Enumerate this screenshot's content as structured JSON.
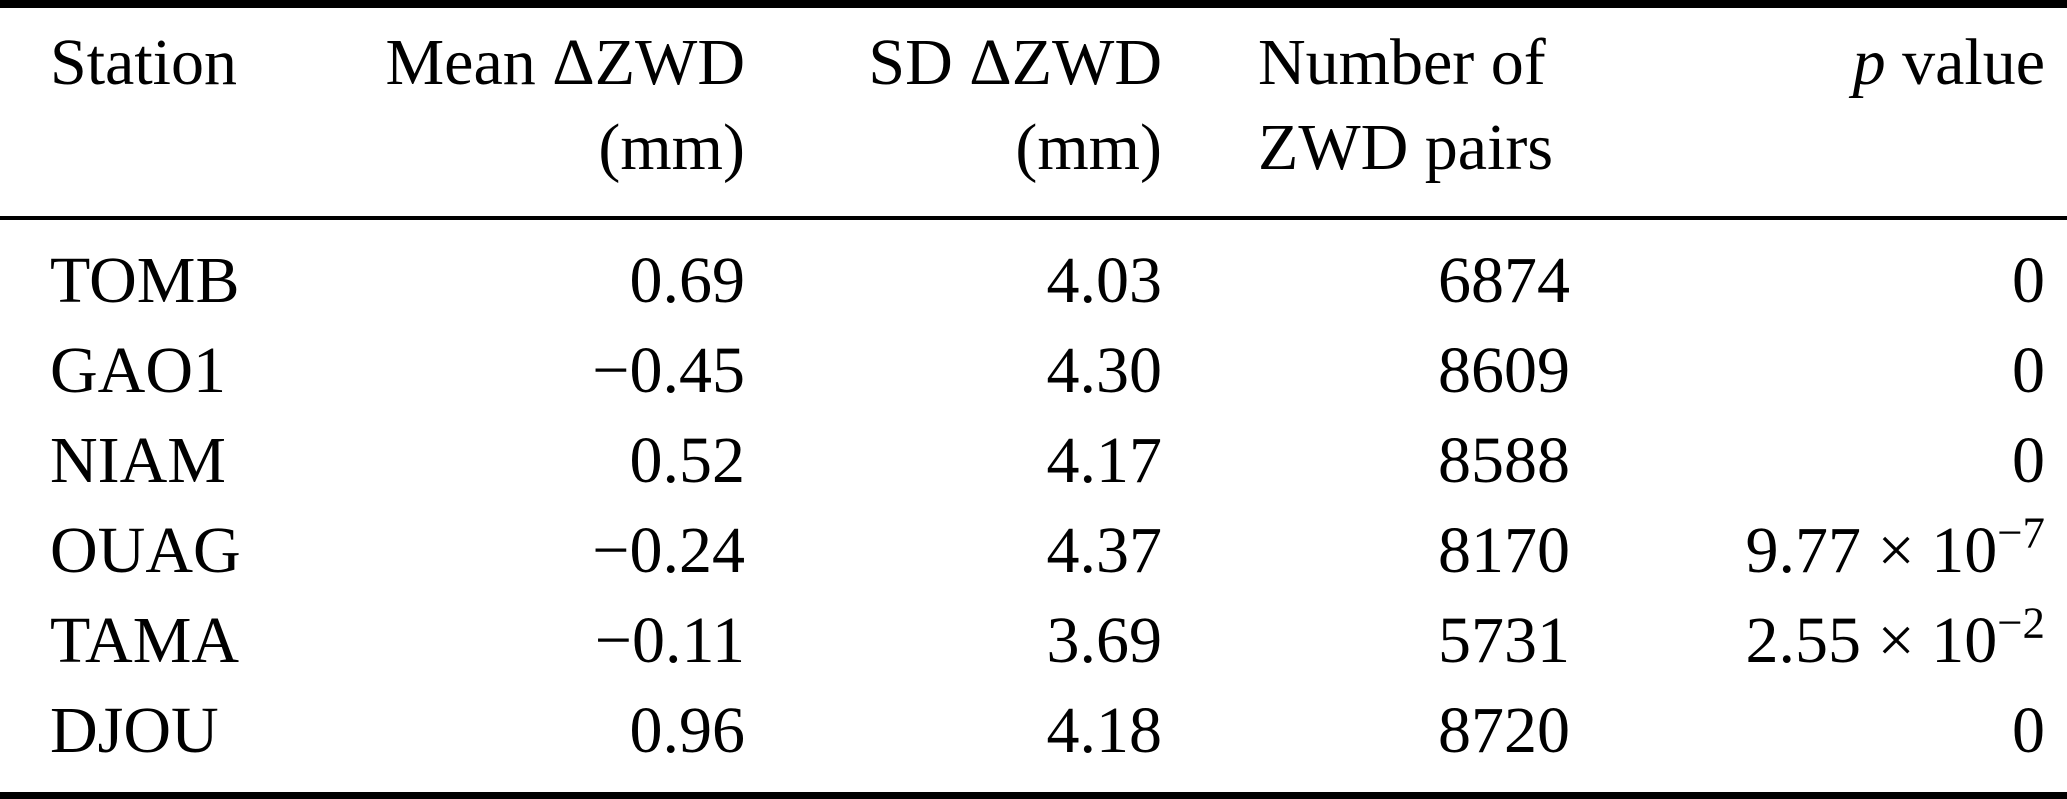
{
  "colors": {
    "text": "#000000",
    "background": "#ffffff",
    "rule": "#000000"
  },
  "table": {
    "columns": [
      {
        "line1": "Station",
        "line2": ""
      },
      {
        "line1": "Mean ΔZWD",
        "line2": "(mm)"
      },
      {
        "line1": "SD ΔZWD",
        "line2": "(mm)"
      },
      {
        "line1": "Number of",
        "line2": "ZWD pairs"
      },
      {
        "line1_p": "p",
        "line1_rest": " value",
        "line2": ""
      }
    ],
    "rows": [
      {
        "station": "TOMB",
        "mean_zwd": "0.69",
        "sd_zwd": "4.03",
        "num_pairs": "6874",
        "p_base": "0"
      },
      {
        "station": "GAO1",
        "mean_zwd": "−0.45",
        "sd_zwd": "4.30",
        "num_pairs": "8609",
        "p_base": "0"
      },
      {
        "station": "NIAM",
        "mean_zwd": "0.52",
        "sd_zwd": "4.17",
        "num_pairs": "8588",
        "p_base": "0"
      },
      {
        "station": "OUAG",
        "mean_zwd": "−0.24",
        "sd_zwd": "4.37",
        "num_pairs": "8170",
        "p_base": "9.77 × 10",
        "p_exp": "−7"
      },
      {
        "station": "TAMA",
        "mean_zwd": "−0.11",
        "sd_zwd": "3.69",
        "num_pairs": "5731",
        "p_base": "2.55 × 10",
        "p_exp": "−2"
      },
      {
        "station": "DJOU",
        "mean_zwd": "0.96",
        "sd_zwd": "4.18",
        "num_pairs": "8720",
        "p_base": "0"
      }
    ]
  }
}
